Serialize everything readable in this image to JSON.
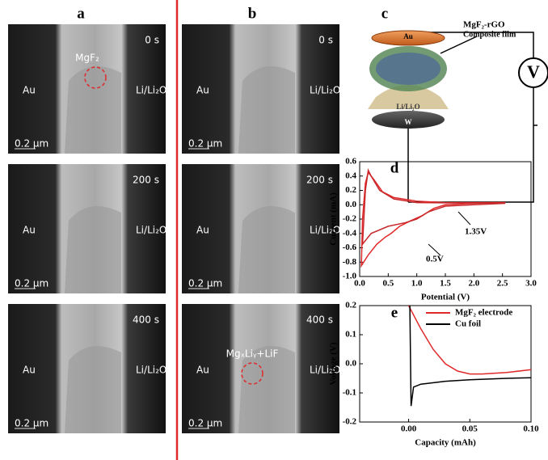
{
  "labels": {
    "a": "a",
    "b": "b",
    "c": "c",
    "d": "d",
    "e": "e"
  },
  "images": [
    {
      "time": "0 s",
      "left": "Au",
      "right": "Li/Li₂O",
      "scale": "0.2 μm",
      "note": "MgF₂"
    },
    {
      "time": "200 s",
      "left": "Au",
      "right": "Li/Li₂O",
      "scale": "0.2 μm"
    },
    {
      "time": "400 s",
      "left": "Au",
      "right": "Li/Li₂O",
      "scale": "0.2 μm"
    },
    {
      "time": "0 s",
      "left": "Au",
      "right": "Li/Li₂O",
      "scale": "0.2 μm"
    },
    {
      "time": "200 s",
      "left": "Au",
      "right": "Li/Li₂O",
      "scale": "0.2 μm"
    },
    {
      "time": "400 s",
      "left": "Au",
      "right": "Li/Li₂O",
      "scale": "0.2 μm",
      "note": "MgₓLiᵧ+LiF"
    }
  ],
  "schematic": {
    "top": "Au",
    "film": "MgF₂-rGO",
    "film2": "Composite film",
    "base": "Li/Li₂O",
    "bottom": "W",
    "meter": "V"
  },
  "chart_data": [
    {
      "type": "line",
      "xlabel": "Potential (V)",
      "ylabel": "Current (mA)",
      "xlim": [
        0,
        3
      ],
      "ylim": [
        -1.0,
        0.6
      ],
      "xticks": [
        {
          "value": 0,
          "label": "0.0"
        },
        0.5,
        {
          "value": 1,
          "label": "1.0"
        },
        1.5,
        {
          "value": 2,
          "label": "2.0"
        },
        2.5,
        {
          "value": 3,
          "label": "3.0"
        }
      ],
      "yticks": [
        0.6,
        0.4,
        0.2,
        {
          "value": 0,
          "label": "0.0"
        },
        -0.2,
        -0.4,
        -0.6,
        -0.8,
        {
          "value": -1,
          "label": "-1.0"
        }
      ],
      "annotations": [
        "1.35V",
        "0.5V"
      ],
      "series": [
        {
          "color": "#e0292b",
          "x": [
            2.55,
            2.0,
            1.5,
            1.3,
            1.1,
            0.9,
            0.7,
            0.55,
            0.45,
            0.3,
            0.15,
            0.03,
            0.05,
            0.1,
            0.15,
            0.25,
            0.4,
            0.6,
            1.0,
            1.5,
            2.0,
            2.55
          ],
          "values": [
            0.03,
            0.02,
            0.0,
            -0.05,
            -0.15,
            -0.22,
            -0.3,
            -0.4,
            -0.45,
            -0.55,
            -0.7,
            -0.85,
            -0.2,
            0.3,
            0.45,
            0.35,
            0.18,
            0.1,
            0.05,
            0.03,
            0.03,
            0.03
          ]
        },
        {
          "color": "#c8282a",
          "x": [
            2.55,
            2.0,
            1.5,
            1.35,
            1.2,
            1.1,
            1.0,
            0.8,
            0.5,
            0.2,
            0.05,
            0.1,
            0.15,
            0.2,
            0.35,
            0.6,
            1.0,
            2.55
          ],
          "values": [
            0.02,
            0.0,
            -0.02,
            -0.06,
            -0.1,
            -0.15,
            -0.2,
            -0.25,
            -0.3,
            -0.4,
            -0.55,
            0.2,
            0.48,
            0.4,
            0.2,
            0.08,
            0.03,
            0.02
          ]
        }
      ]
    },
    {
      "type": "line",
      "xlabel": "Capacity (mAh)",
      "ylabel": "Voltage (V)",
      "xlim": [
        -0.04,
        0.1
      ],
      "ylim": [
        -0.2,
        0.2
      ],
      "xticks": [
        {
          "value": 0,
          "label": "0.00"
        },
        0.05,
        {
          "value": 0.1,
          "label": "0.10"
        }
      ],
      "yticks": [
        0.2,
        0.1,
        {
          "value": 0,
          "label": "0.0"
        },
        -0.1,
        -0.2
      ],
      "legend": "upper right",
      "series": [
        {
          "name": "MgF₂ electrode",
          "color": "#e0292b",
          "x": [
            0.0,
            0.01,
            0.02,
            0.03,
            0.04,
            0.05,
            0.06,
            0.08,
            0.1
          ],
          "values": [
            0.2,
            0.12,
            0.05,
            0.0,
            -0.025,
            -0.035,
            -0.035,
            -0.03,
            -0.02
          ]
        },
        {
          "name": "Cu foil",
          "color": "#000000",
          "x": [
            0.001,
            0.002,
            0.004,
            0.01,
            0.03,
            0.05,
            0.08,
            0.1
          ],
          "values": [
            0.2,
            -0.145,
            -0.08,
            -0.07,
            -0.06,
            -0.055,
            -0.05,
            -0.048
          ]
        }
      ]
    }
  ]
}
